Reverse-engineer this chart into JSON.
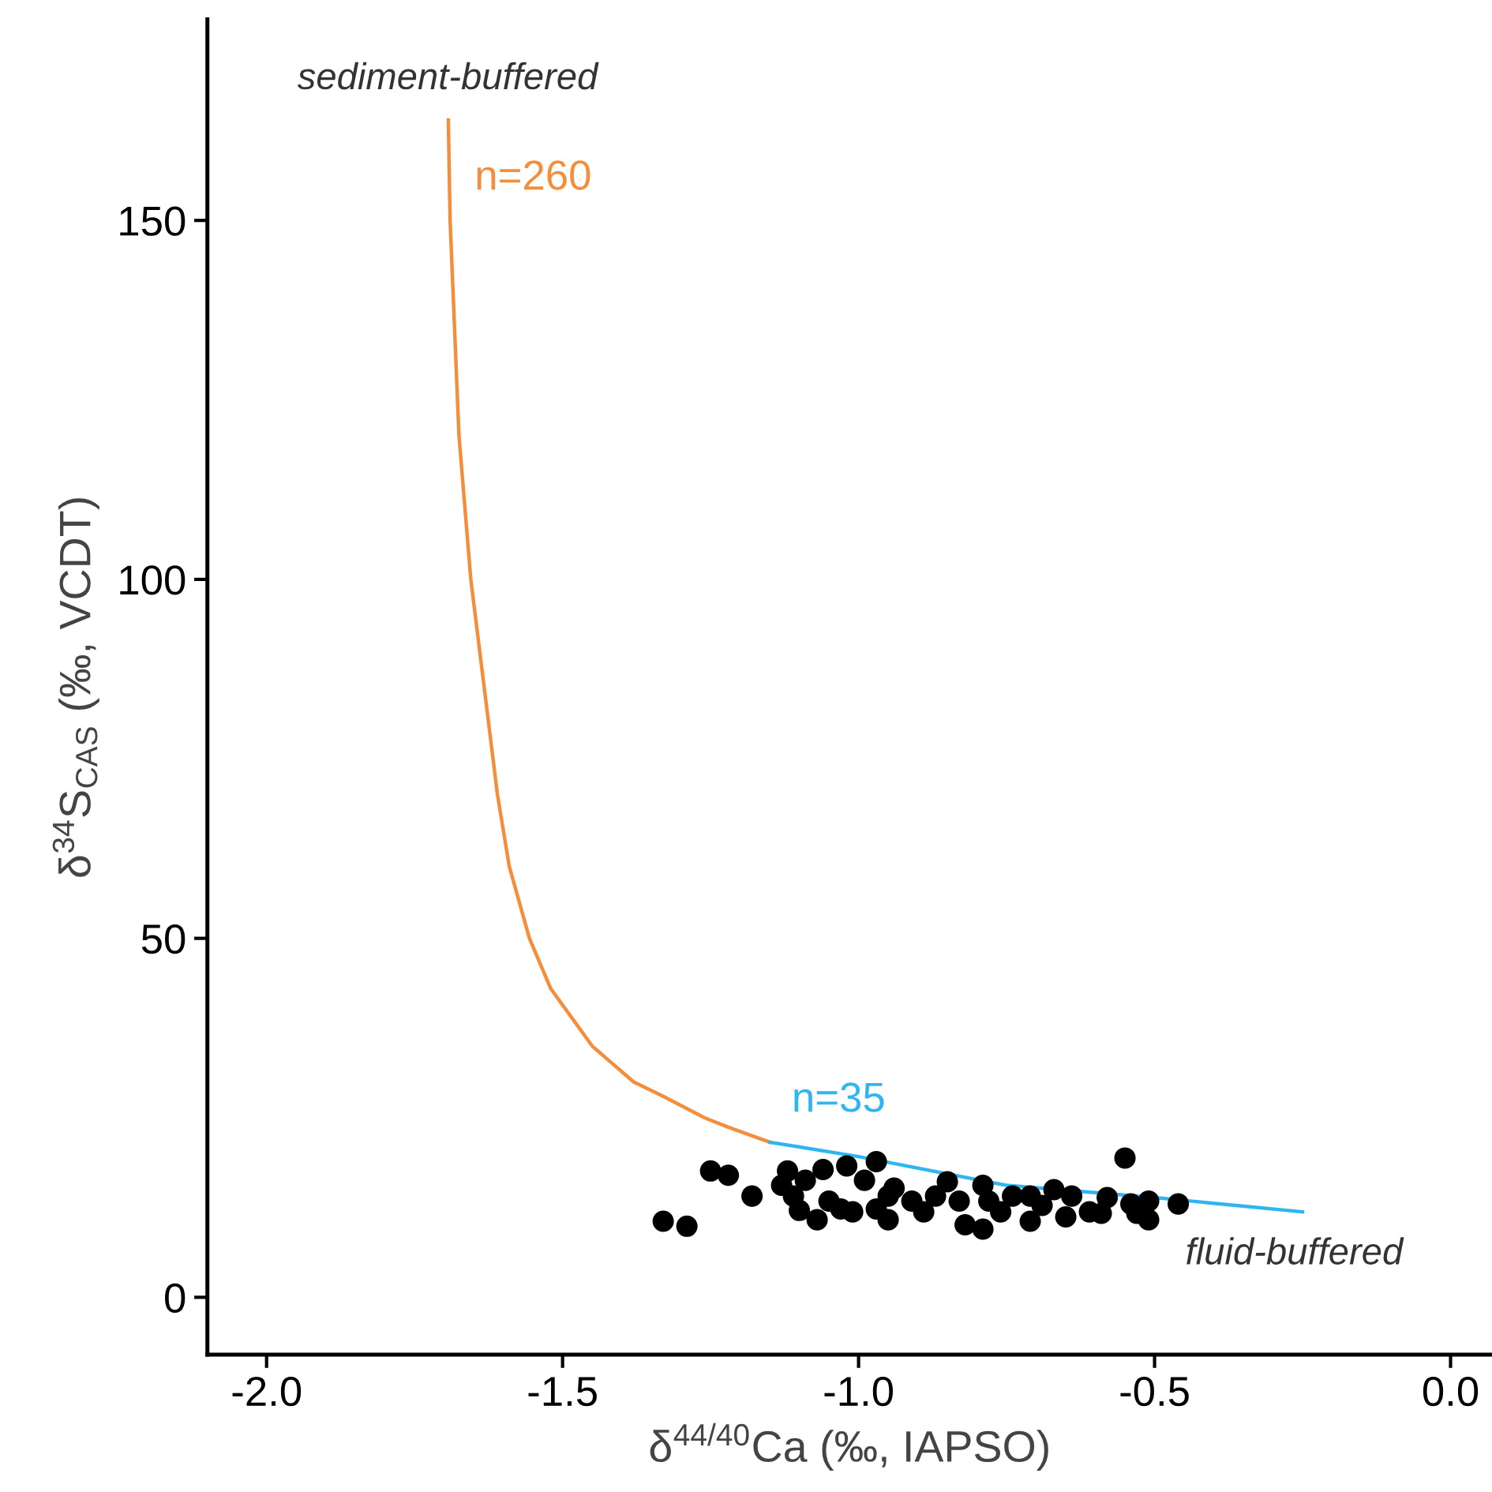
{
  "chart_data": {
    "type": "scatter",
    "xlabel": "δ$^{44/40}$Ca (‰, IAPSO)",
    "ylabel": "δ$^{34}$S$_{CAS}$ (‰, VCDT)",
    "xlim": [
      -2.1,
      0.07
    ],
    "ylim": [
      -8,
      178
    ],
    "xticks": [
      {
        "value": -2.0,
        "label": "-2.0"
      },
      {
        "value": -1.5,
        "label": "-1.5"
      },
      {
        "value": -1.0,
        "label": "-1.0"
      },
      {
        "value": -0.5,
        "label": "-0.5"
      },
      {
        "value": 0.0,
        "label": "0.0"
      }
    ],
    "yticks": [
      0,
      50,
      100,
      150
    ],
    "grid": false,
    "legend": false,
    "series": [
      {
        "type": "line",
        "name": "n=260",
        "color": "#f28e3c",
        "x": [
          -1.693,
          -1.69,
          -1.68,
          -1.675,
          -1.665,
          -1.655,
          -1.64,
          -1.625,
          -1.61,
          -1.59,
          -1.556,
          -1.52,
          -1.45,
          -1.38,
          -1.33,
          -1.26,
          -1.22,
          -1.15
        ],
        "values": [
          164,
          150,
          130,
          120,
          110,
          100,
          90,
          80,
          70,
          60,
          50,
          43,
          35,
          30,
          28,
          25,
          23.7,
          21.6
        ]
      },
      {
        "type": "line",
        "name": "n=35",
        "color": "#2fb5f0",
        "x": [
          -1.15,
          -1.0,
          -0.75,
          -0.5,
          -0.25
        ],
        "values": [
          21.6,
          19.6,
          15.6,
          13.9,
          11.9
        ]
      },
      {
        "color": "#000000",
        "marker": "circle",
        "x": [
          -1.33,
          -1.29,
          -1.25,
          -1.22,
          -1.18,
          -1.12,
          -1.11,
          -1.1,
          -1.07,
          -1.06,
          -1.02,
          -0.97,
          -1.01,
          -0.95,
          -0.94,
          -0.91,
          -0.87,
          -0.85,
          -0.82,
          -0.79,
          -0.79,
          -0.76,
          -0.71,
          -0.71,
          -0.67,
          -0.65,
          -0.63,
          -0.59,
          -0.58,
          -0.55,
          -0.54,
          -0.51,
          -0.51,
          -0.46,
          -1.13,
          -1.09,
          -1.05,
          -0.99,
          -0.95,
          -0.89,
          -0.83,
          -0.78,
          -0.74,
          -0.69,
          -0.64,
          -0.61,
          -0.53,
          -1.03,
          -0.97
        ],
        "values": [
          10.6,
          9.9,
          17.6,
          17.0,
          14.1,
          17.6,
          14.1,
          12.1,
          10.8,
          17.8,
          18.3,
          18.9,
          11.9,
          10.8,
          15.2,
          13.4,
          14.1,
          16.1,
          10.1,
          9.5,
          15.6,
          11.9,
          10.6,
          14.1,
          15.0,
          11.2,
          null,
          11.7,
          13.9,
          19.4,
          13.0,
          10.8,
          13.4,
          13.0,
          15.6,
          16.3,
          13.4,
          16.3,
          14.1,
          11.9,
          13.4,
          13.4,
          14.1,
          12.8,
          14.1,
          11.9,
          11.7,
          12.3,
          12.3
        ]
      }
    ],
    "annotations": [
      "sediment-buffered",
      "fluid-buffered"
    ]
  }
}
